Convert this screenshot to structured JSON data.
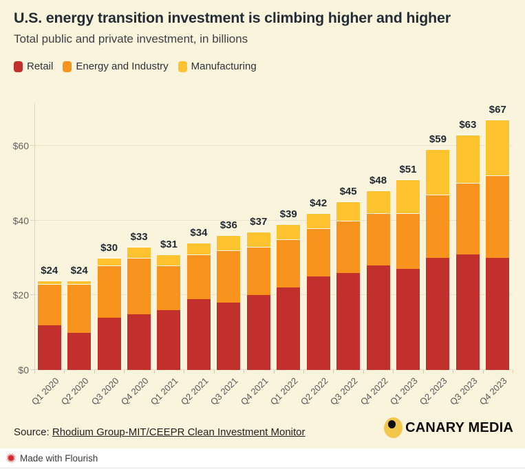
{
  "header": {
    "title": "U.S. energy transition investment is climbing higher and higher",
    "subtitle": "Total public and private investment, in billions"
  },
  "chart_data": {
    "type": "bar",
    "stacked": true,
    "grid": "horizontal",
    "legend_position": "top-left",
    "categories": [
      "Q1 2020",
      "Q2 2020",
      "Q3 2020",
      "Q4 2020",
      "Q1 2021",
      "Q2 2021",
      "Q3 2021",
      "Q4 2021",
      "Q1 2022",
      "Q2 2022",
      "Q3 2022",
      "Q4 2022",
      "Q1 2023",
      "Q2 2023",
      "Q3 2023",
      "Q4 2023"
    ],
    "series": [
      {
        "name": "Retail",
        "color": "#c2302d",
        "values": [
          12,
          10,
          14,
          15,
          16,
          19,
          18,
          20,
          22,
          25,
          26,
          28,
          27,
          30,
          31,
          30
        ]
      },
      {
        "name": "Energy and Industry",
        "color": "#f8941d",
        "values": [
          11,
          13,
          14,
          15,
          12,
          12,
          14,
          13,
          13,
          13,
          14,
          14,
          15,
          17,
          19,
          22
        ]
      },
      {
        "name": "Manufacturing",
        "color": "#fec32e",
        "values": [
          1,
          1,
          2,
          3,
          3,
          3,
          4,
          4,
          4,
          4,
          5,
          6,
          9,
          12,
          13,
          15
        ]
      }
    ],
    "totals": [
      24,
      24,
      30,
      33,
      31,
      34,
      36,
      37,
      39,
      42,
      45,
      48,
      51,
      59,
      63,
      67
    ],
    "bar_labels": [
      "$24",
      "$24",
      "$30",
      "$33",
      "$31",
      "$34",
      "$36",
      "$37",
      "$39",
      "$42",
      "$45",
      "$48",
      "$51",
      "$59",
      "$63",
      "$67"
    ],
    "y_ticks": {
      "labels": [
        "$0",
        "$20",
        "$40",
        "$60"
      ],
      "values": [
        0,
        20,
        40,
        60
      ]
    },
    "ylim": [
      0,
      71.4
    ],
    "xlabel": "",
    "ylabel": ""
  },
  "footer": {
    "source_prefix": "Source: ",
    "source_link": "Rhodium Group-MIT/CEEPR Clean Investment Monitor",
    "brand": "CANARY MEDIA",
    "attribution": "Made with Flourish"
  },
  "colors": {
    "background": "#fbf4dd",
    "title_text": "#222d36",
    "axis_text": "#62625e",
    "gridline": "#e9e2cc",
    "retail": "#c2302d",
    "energy_and_industry": "#f8941d",
    "manufacturing": "#fec32e",
    "flourish_star": "#d4232a",
    "canary_yellow": "#f3c74d"
  }
}
